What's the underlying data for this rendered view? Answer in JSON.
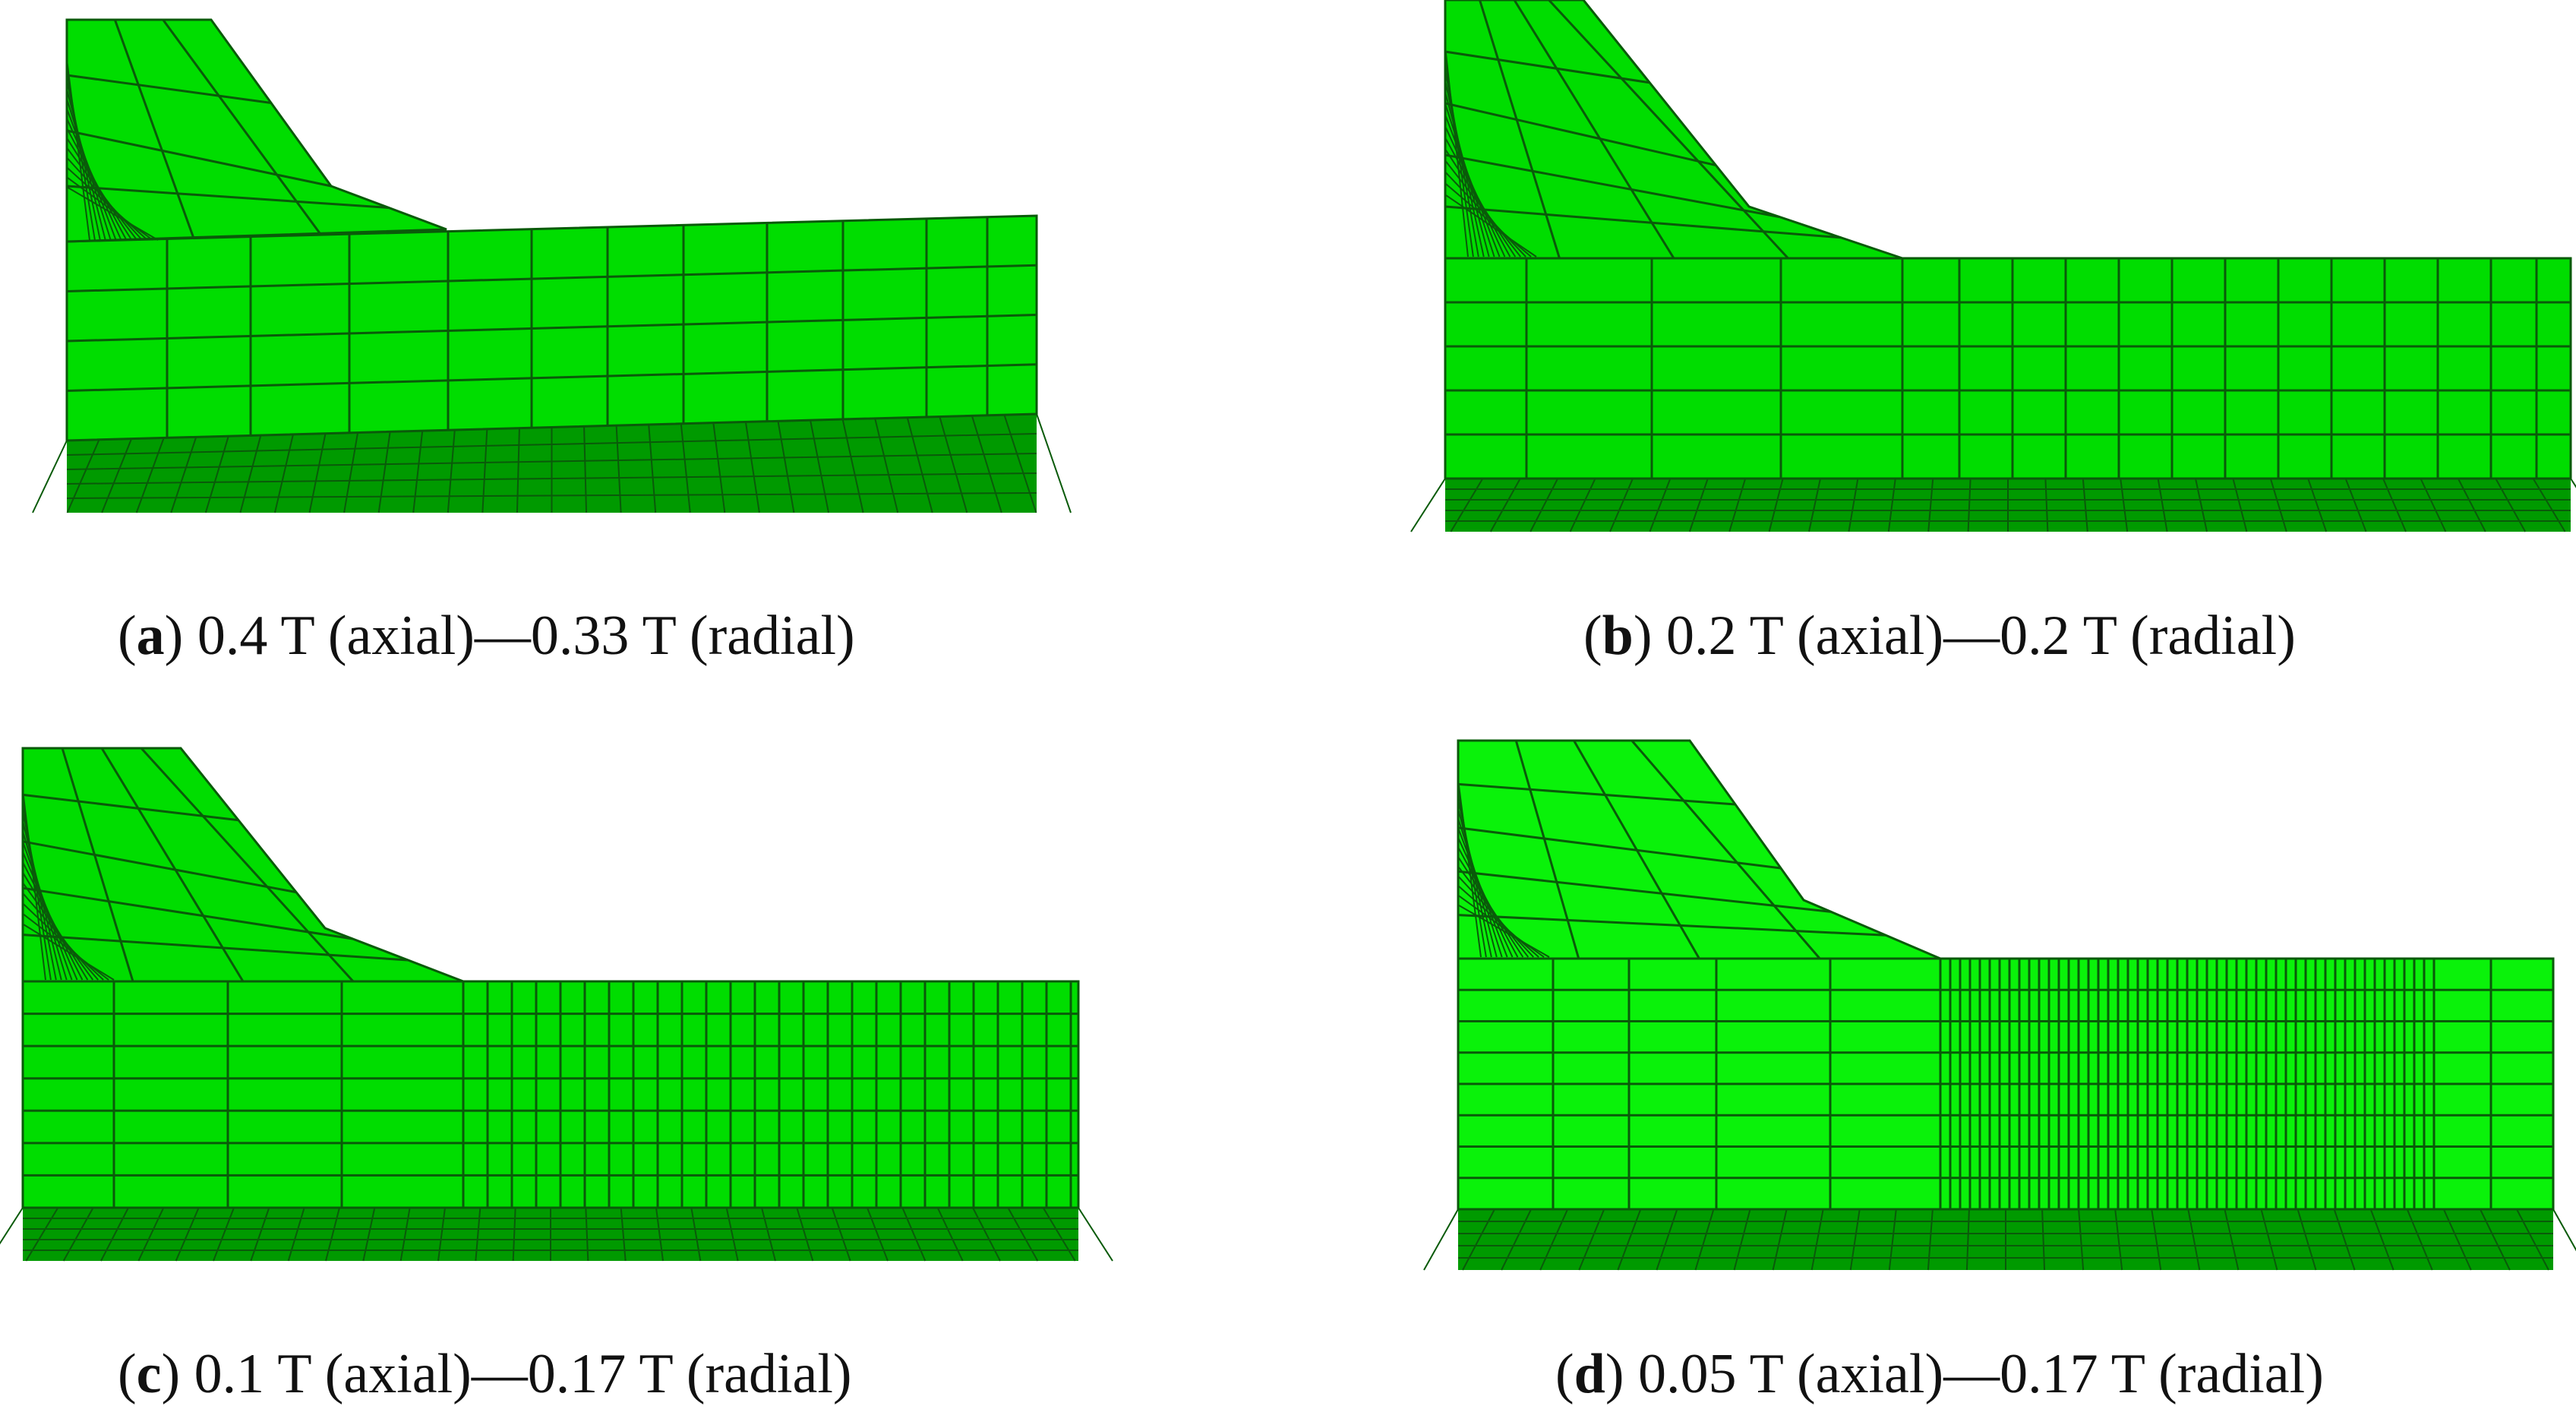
{
  "colors": {
    "mesh_fill": "#00dd00",
    "mesh_fill_light": "#0af20a",
    "mesh_lines": "#0a5a0a",
    "base_fill": "#009a00"
  },
  "panels": [
    {
      "id": "a",
      "letter": "a",
      "caption": "0.4 T (axial)—0.33 T (radial)"
    },
    {
      "id": "b",
      "letter": "b",
      "caption": "0.2 T (axial)—0.2 T (radial)"
    },
    {
      "id": "c",
      "letter": "c",
      "caption": "0.1 T (axial)—0.17 T (radial)"
    },
    {
      "id": "d",
      "letter": "d",
      "caption": "0.05 T (axial)—0.17 T (radial)"
    }
  ]
}
